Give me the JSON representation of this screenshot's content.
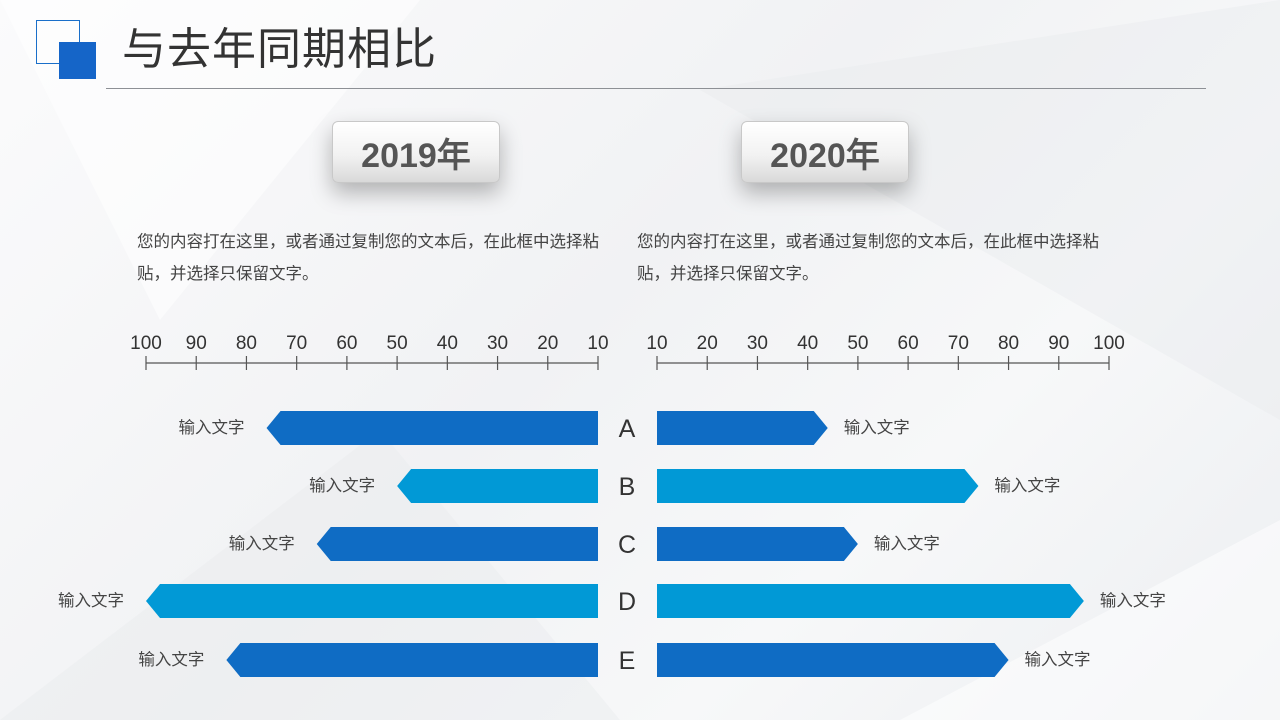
{
  "page": {
    "title": "与去年同期相比",
    "left_year": "2019年",
    "right_year": "2020年",
    "left_desc": "您的内容打在这里，或者通过复制您的文本后，在此框中选择粘贴，并选择只保留文字。",
    "right_desc": "您的内容打在这里，或者通过复制您的文本后，在此框中选择粘贴，并选择只保留文字。"
  },
  "colors": {
    "dark_blue": "#0f6cc4",
    "light_blue": "#0199d6",
    "accent": "#1565c8"
  },
  "chart_data": [
    {
      "type": "bar",
      "orientation": "horizontal-reversed",
      "title": "2019年",
      "categories": [
        "A",
        "B",
        "C",
        "D",
        "E"
      ],
      "bar_labels": [
        "输入文字",
        "输入文字",
        "输入文字",
        "输入文字",
        "输入文字"
      ],
      "values": [
        76,
        50,
        66,
        100,
        84
      ],
      "ticks": [
        100,
        90,
        80,
        70,
        60,
        50,
        40,
        30,
        20,
        10
      ],
      "xlim": [
        10,
        100
      ],
      "series_colors": [
        "#0f6cc4",
        "#0199d6",
        "#0f6cc4",
        "#0199d6",
        "#0f6cc4"
      ]
    },
    {
      "type": "bar",
      "orientation": "horizontal",
      "title": "2020年",
      "categories": [
        "A",
        "B",
        "C",
        "D",
        "E"
      ],
      "bar_labels": [
        "输入文字",
        "输入文字",
        "输入文字",
        "输入文字",
        "输入文字"
      ],
      "values": [
        44,
        74,
        50,
        95,
        80
      ],
      "ticks": [
        10,
        20,
        30,
        40,
        50,
        60,
        70,
        80,
        90,
        100
      ],
      "xlim": [
        10,
        100
      ],
      "series_colors": [
        "#0f6cc4",
        "#0199d6",
        "#0f6cc4",
        "#0199d6",
        "#0f6cc4"
      ]
    }
  ]
}
